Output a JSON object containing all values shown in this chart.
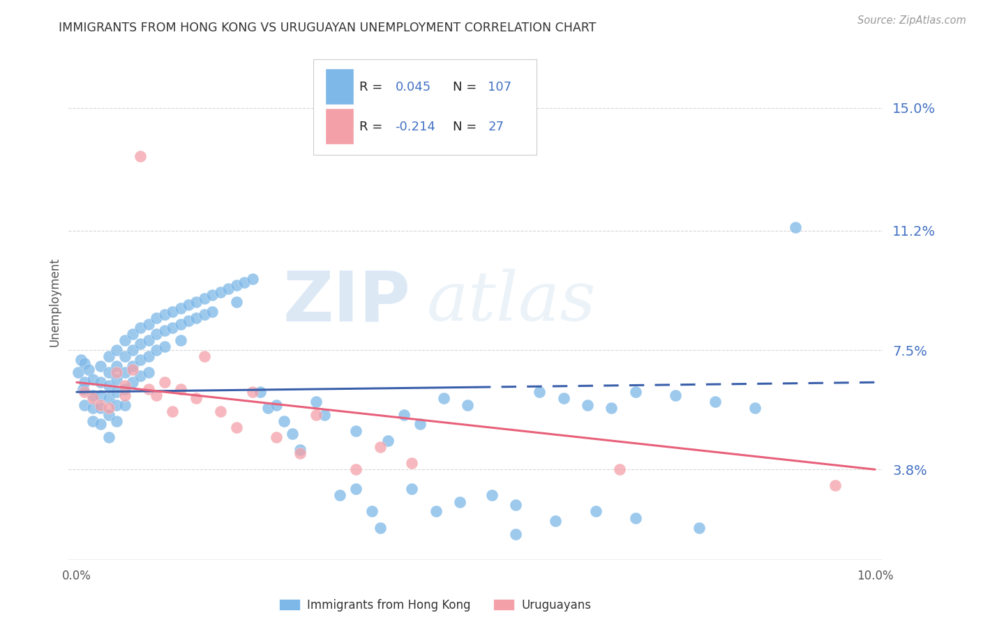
{
  "title": "IMMIGRANTS FROM HONG KONG VS URUGUAYAN UNEMPLOYMENT CORRELATION CHART",
  "source": "Source: ZipAtlas.com",
  "ylabel": "Unemployment",
  "ytick_labels": [
    "15.0%",
    "11.2%",
    "7.5%",
    "3.8%"
  ],
  "ytick_values": [
    0.15,
    0.112,
    0.075,
    0.038
  ],
  "ylim": [
    0.01,
    0.17
  ],
  "xlim": [
    -0.001,
    0.101
  ],
  "hk_R": "0.045",
  "hk_N": "107",
  "uy_R": "-0.214",
  "uy_N": "27",
  "legend_labels": [
    "Immigrants from Hong Kong",
    "Uruguayans"
  ],
  "hk_color": "#7db8e8",
  "uy_color": "#f4a0a8",
  "hk_line_color": "#3a5faa",
  "uy_line_color": "#e8607a",
  "hk_scatter_x": [
    0.0002,
    0.0005,
    0.0008,
    0.001,
    0.001,
    0.001,
    0.0015,
    0.002,
    0.002,
    0.002,
    0.002,
    0.003,
    0.003,
    0.003,
    0.003,
    0.003,
    0.004,
    0.004,
    0.004,
    0.004,
    0.004,
    0.004,
    0.005,
    0.005,
    0.005,
    0.005,
    0.005,
    0.005,
    0.006,
    0.006,
    0.006,
    0.006,
    0.006,
    0.007,
    0.007,
    0.007,
    0.007,
    0.008,
    0.008,
    0.008,
    0.008,
    0.009,
    0.009,
    0.009,
    0.009,
    0.01,
    0.01,
    0.01,
    0.011,
    0.011,
    0.011,
    0.012,
    0.012,
    0.013,
    0.013,
    0.013,
    0.014,
    0.014,
    0.015,
    0.015,
    0.016,
    0.016,
    0.017,
    0.017,
    0.018,
    0.019,
    0.02,
    0.02,
    0.021,
    0.022,
    0.023,
    0.024,
    0.025,
    0.026,
    0.027,
    0.028,
    0.03,
    0.031,
    0.033,
    0.035,
    0.037,
    0.039,
    0.041,
    0.043,
    0.046,
    0.049,
    0.052,
    0.055,
    0.058,
    0.061,
    0.064,
    0.067,
    0.07,
    0.075,
    0.08,
    0.085,
    0.09,
    0.035,
    0.045,
    0.06,
    0.042,
    0.048,
    0.038,
    0.055,
    0.065,
    0.07,
    0.078
  ],
  "hk_scatter_y": [
    0.068,
    0.072,
    0.063,
    0.071,
    0.065,
    0.058,
    0.069,
    0.066,
    0.061,
    0.057,
    0.053,
    0.07,
    0.065,
    0.061,
    0.057,
    0.052,
    0.073,
    0.068,
    0.064,
    0.06,
    0.055,
    0.048,
    0.075,
    0.07,
    0.066,
    0.062,
    0.058,
    0.053,
    0.078,
    0.073,
    0.068,
    0.063,
    0.058,
    0.08,
    0.075,
    0.07,
    0.065,
    0.082,
    0.077,
    0.072,
    0.067,
    0.083,
    0.078,
    0.073,
    0.068,
    0.085,
    0.08,
    0.075,
    0.086,
    0.081,
    0.076,
    0.087,
    0.082,
    0.088,
    0.083,
    0.078,
    0.089,
    0.084,
    0.09,
    0.085,
    0.091,
    0.086,
    0.092,
    0.087,
    0.093,
    0.094,
    0.095,
    0.09,
    0.096,
    0.097,
    0.062,
    0.057,
    0.058,
    0.053,
    0.049,
    0.044,
    0.059,
    0.055,
    0.03,
    0.05,
    0.025,
    0.047,
    0.055,
    0.052,
    0.06,
    0.058,
    0.03,
    0.027,
    0.062,
    0.06,
    0.058,
    0.057,
    0.062,
    0.061,
    0.059,
    0.057,
    0.113,
    0.032,
    0.025,
    0.022,
    0.032,
    0.028,
    0.02,
    0.018,
    0.025,
    0.023,
    0.02
  ],
  "uy_scatter_x": [
    0.001,
    0.002,
    0.003,
    0.004,
    0.005,
    0.006,
    0.006,
    0.007,
    0.008,
    0.009,
    0.01,
    0.011,
    0.012,
    0.013,
    0.015,
    0.016,
    0.018,
    0.02,
    0.022,
    0.025,
    0.028,
    0.03,
    0.035,
    0.038,
    0.042,
    0.068,
    0.095
  ],
  "uy_scatter_y": [
    0.062,
    0.06,
    0.058,
    0.057,
    0.068,
    0.064,
    0.061,
    0.069,
    0.135,
    0.063,
    0.061,
    0.065,
    0.056,
    0.063,
    0.06,
    0.073,
    0.056,
    0.051,
    0.062,
    0.048,
    0.043,
    0.055,
    0.038,
    0.045,
    0.04,
    0.038,
    0.033
  ],
  "watermark_zip": "ZIP",
  "watermark_atlas": "atlas",
  "grid_color": "#cccccc",
  "background_color": "#ffffff",
  "title_color": "#333333",
  "axis_label_color": "#555555",
  "ytick_color": "#4472c4",
  "xtick_color": "#555555",
  "hk_line_solid_end": 0.05,
  "hk_line_dash_start": 0.05
}
